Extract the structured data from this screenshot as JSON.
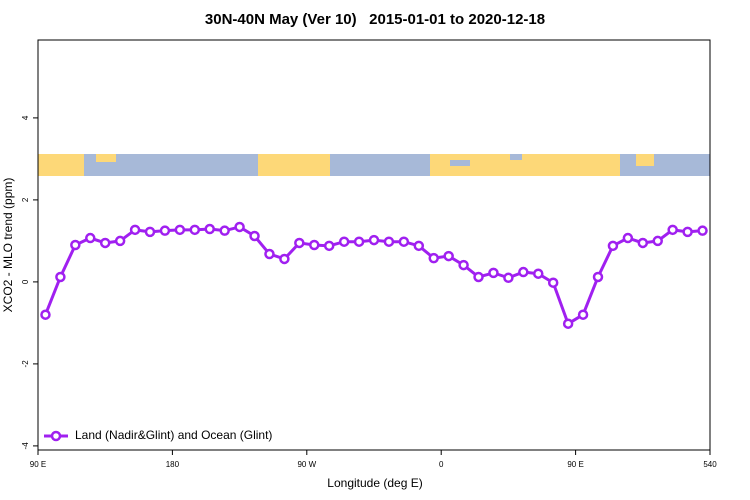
{
  "chart_data": {
    "type": "line",
    "title": "30N-40N May (Ver 10)   2015-01-01 to 2020-12-18",
    "xlabel": "Longitude (deg E)",
    "ylabel": "XCO2 - MLO trend (ppm)",
    "x": [
      95,
      105,
      115,
      125,
      135,
      145,
      155,
      165,
      175,
      185,
      195,
      205,
      215,
      225,
      235,
      245,
      255,
      265,
      275,
      285,
      295,
      305,
      315,
      325,
      335,
      345,
      355,
      365,
      375,
      385,
      395,
      405,
      415,
      425,
      435,
      445,
      455,
      465,
      475,
      485,
      495,
      505,
      515,
      525,
      535
    ],
    "series": [
      {
        "name": "Land (Nadir&Glint) and Ocean (Glint)",
        "color": "#a020f0",
        "values": [
          -0.8,
          0.12,
          0.9,
          1.07,
          0.95,
          1.0,
          1.27,
          1.22,
          1.25,
          1.27,
          1.27,
          1.29,
          1.25,
          1.34,
          1.12,
          0.68,
          0.56,
          0.95,
          0.9,
          0.88,
          0.98,
          0.98,
          1.02,
          0.98,
          0.98,
          0.88,
          0.58,
          0.63,
          0.41,
          0.12,
          0.22,
          0.1,
          0.24,
          0.2,
          -0.02,
          -1.02,
          -0.8,
          0.12,
          0.88,
          1.07,
          0.95,
          1.0,
          1.27,
          1.22,
          1.25
        ]
      }
    ],
    "xlim": [
      90,
      540
    ],
    "xticks": [
      {
        "value": 90,
        "label": "90 E"
      },
      180,
      {
        "value": 270,
        "label": "90 W"
      },
      {
        "value": 360,
        "label": "0"
      },
      {
        "value": 450,
        "label": "90 E"
      },
      540
    ],
    "ylim": [
      -4.1,
      5.9
    ],
    "yticks": [
      -4,
      -2,
      0,
      2,
      4
    ],
    "legend": "bottom-left"
  }
}
